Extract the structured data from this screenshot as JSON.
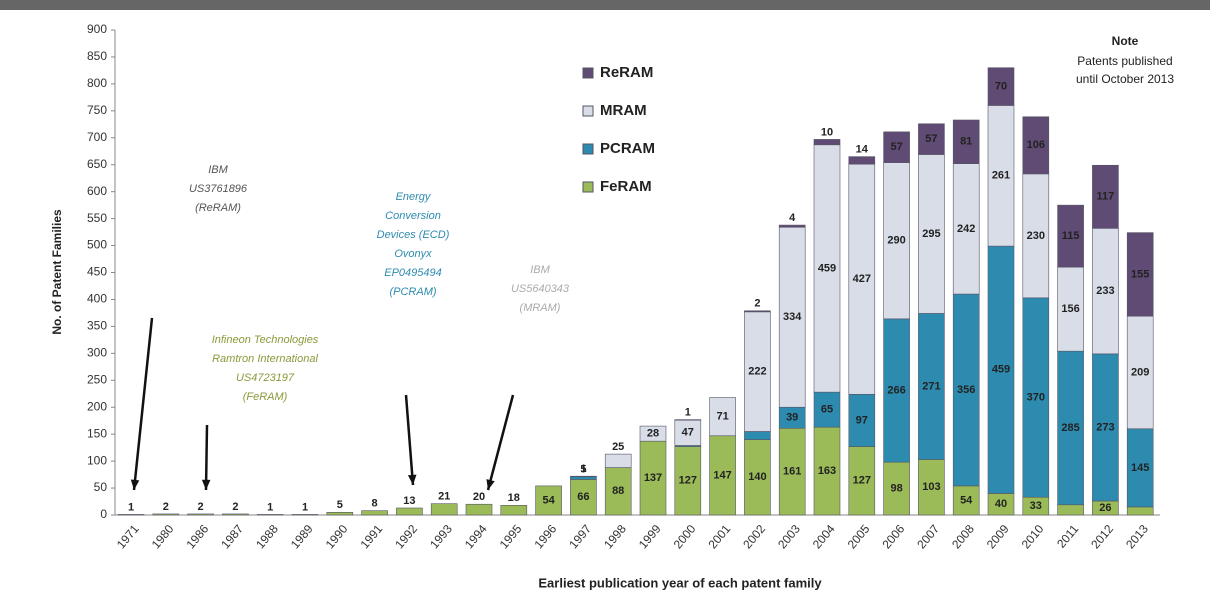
{
  "chart_data": {
    "type": "stacked_bar",
    "y_label": "No. of Patent Families",
    "x_label": "Earliest publication year of each patent family",
    "note_title": "Note",
    "note_lines": [
      "Patents published",
      "until October 2013"
    ],
    "annotations": [
      {
        "lines": [
          "IBM",
          "US3761896",
          "(ReRAM)"
        ],
        "color": "#555555"
      },
      {
        "lines": [
          "Infineon Technologies",
          "Ramtron International",
          "US4723197",
          "(FeRAM)"
        ],
        "color": "#8a9a3a"
      },
      {
        "lines": [
          "Energy",
          "Conversion",
          "Devices (ECD)",
          "Ovonyx",
          "EP0495494",
          "(PCRAM)"
        ],
        "color": "#2e8bb0"
      },
      {
        "lines": [
          "IBM",
          "US5640343",
          "(MRAM)"
        ],
        "color": "#aaaaaa"
      }
    ],
    "categories": [
      "1971",
      "1980",
      "1986",
      "1987",
      "1988",
      "1989",
      "1990",
      "1991",
      "1992",
      "1993",
      "1994",
      "1995",
      "1996",
      "1997",
      "1998",
      "1999",
      "2000",
      "2001",
      "2002",
      "2003",
      "2004",
      "2005",
      "2006",
      "2007",
      "2008",
      "2009",
      "2010",
      "2011",
      "2012",
      "2013"
    ],
    "series": [
      {
        "name": "FeRAM",
        "color": "#9bbb59",
        "values": [
          0,
          2,
          2,
          2,
          1,
          1,
          5,
          8,
          13,
          21,
          20,
          18,
          54,
          66,
          88,
          137,
          127,
          147,
          140,
          161,
          163,
          127,
          98,
          103,
          54,
          40,
          33,
          19,
          26,
          15
        ]
      },
      {
        "name": "PCRAM",
        "color": "#2e8bb0",
        "values": [
          0,
          0,
          0,
          0,
          0,
          0,
          0,
          0,
          0,
          0,
          0,
          0,
          0,
          5,
          0,
          0,
          2,
          0,
          15,
          39,
          65,
          97,
          266,
          271,
          356,
          459,
          370,
          285,
          273,
          145
        ]
      },
      {
        "name": "MRAM",
        "color": "#d9dde8",
        "values": [
          0,
          0,
          0,
          0,
          0,
          0,
          0,
          0,
          0,
          0,
          0,
          0,
          0,
          1,
          25,
          28,
          47,
          71,
          222,
          334,
          459,
          427,
          290,
          295,
          242,
          261,
          230,
          156,
          233,
          209
        ]
      },
      {
        "name": "ReRAM",
        "color": "#5f4b73",
        "values": [
          1,
          0,
          0,
          0,
          0,
          0,
          0,
          0,
          0,
          0,
          0,
          0,
          0,
          0,
          0,
          0,
          1,
          0,
          2,
          4,
          10,
          14,
          57,
          57,
          81,
          70,
          106,
          115,
          117,
          155
        ]
      }
    ],
    "ylim": [
      0,
      900
    ],
    "yticks": [
      0,
      50,
      100,
      150,
      200,
      250,
      300,
      350,
      400,
      450,
      500,
      550,
      600,
      650,
      700,
      750,
      800,
      850,
      900
    ]
  }
}
